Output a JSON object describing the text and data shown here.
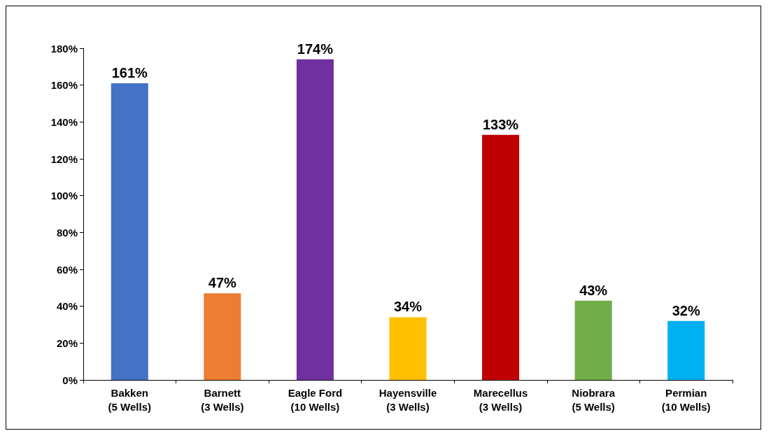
{
  "chart_data": {
    "type": "bar",
    "categories": [
      "Bakken\n(5 Wells)",
      "Barnett\n(3 Wells)",
      "Eagle Ford\n(10 Wells)",
      "Hayensville\n(3 Wells)",
      "Marecellus\n(3 Wells)",
      "Niobrara\n(5 Wells)",
      "Permian\n(10 Wells)"
    ],
    "values": [
      161,
      47,
      174,
      34,
      133,
      43,
      32
    ],
    "colors": [
      "#4472c4",
      "#ed7d31",
      "#7030a0",
      "#ffc000",
      "#c00000",
      "#70ad47",
      "#00b0f0"
    ],
    "value_labels": [
      "161%",
      "47%",
      "174%",
      "34%",
      "133%",
      "43%",
      "32%"
    ],
    "ylim": [
      0,
      180
    ],
    "yticks": [
      {
        "value": 0,
        "label": "0%"
      },
      {
        "value": 20,
        "label": "20%"
      },
      {
        "value": 40,
        "label": "40%"
      },
      {
        "value": 60,
        "label": "60%"
      },
      {
        "value": 80,
        "label": "80%"
      },
      {
        "value": 100,
        "label": "100%"
      },
      {
        "value": 120,
        "label": "120%"
      },
      {
        "value": 140,
        "label": "140%"
      },
      {
        "value": 160,
        "label": "160%"
      },
      {
        "value": 180,
        "label": "180%"
      }
    ],
    "grid": false
  }
}
